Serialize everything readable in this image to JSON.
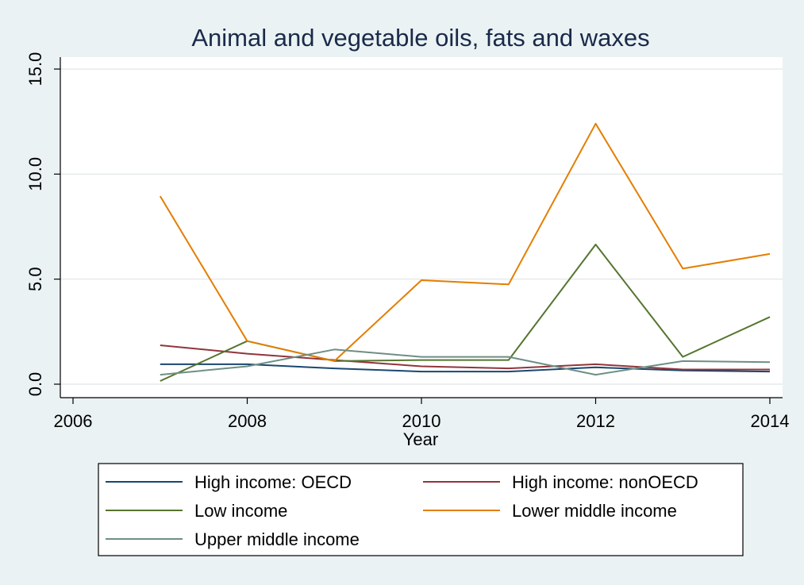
{
  "chart_data": {
    "type": "line",
    "title": "Animal and vegetable oils, fats and waxes",
    "xlabel": "Year",
    "ylabel": "",
    "xlim": [
      2006,
      2014
    ],
    "ylim": [
      0,
      15
    ],
    "x_ticks": [
      "2006",
      "2008",
      "2010",
      "2012",
      "2014"
    ],
    "y_ticks": [
      "0.0",
      "5.0",
      "10.0",
      "15.0"
    ],
    "grid": true,
    "legend_position": "bottom",
    "x": [
      2007,
      2008,
      2009,
      2010,
      2011,
      2012,
      2013,
      2014
    ],
    "series": [
      {
        "name": "High income: OECD",
        "color": "#1a476f",
        "values": [
          0.95,
          0.95,
          0.75,
          0.6,
          0.6,
          0.8,
          0.65,
          0.6
        ]
      },
      {
        "name": "High income: nonOECD",
        "color": "#90353b",
        "values": [
          1.85,
          1.45,
          1.15,
          0.85,
          0.75,
          0.95,
          0.7,
          0.7
        ]
      },
      {
        "name": "Low income",
        "color": "#55752f",
        "values": [
          0.15,
          2.05,
          1.1,
          1.15,
          1.15,
          6.65,
          1.3,
          3.2
        ]
      },
      {
        "name": "Lower middle income",
        "color": "#e37e00",
        "values": [
          8.95,
          2.05,
          1.1,
          4.95,
          4.75,
          12.4,
          5.5,
          6.2
        ]
      },
      {
        "name": "Upper middle income",
        "color": "#6e8e84",
        "values": [
          0.45,
          0.85,
          1.65,
          1.3,
          1.3,
          0.45,
          1.1,
          1.05
        ]
      }
    ]
  }
}
